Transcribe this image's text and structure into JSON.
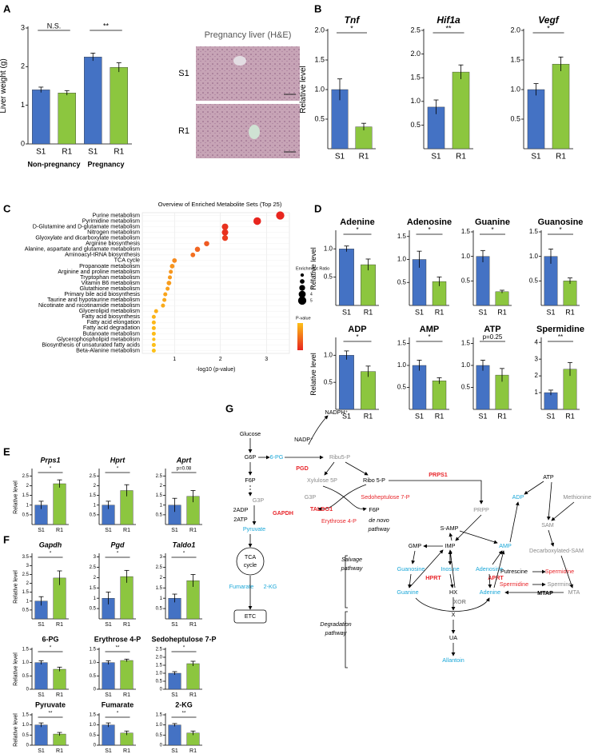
{
  "panel_labels": [
    "A",
    "B",
    "C",
    "D",
    "E",
    "F",
    "G"
  ],
  "image_panel": {
    "title": "Pregnancy liver (H&E)",
    "labels": [
      "S1",
      "R1"
    ]
  },
  "chart_data": [
    {
      "type": "bar",
      "ylabel": "Liver weight (g)",
      "categories": [
        "S1",
        "R1",
        "S1",
        "R1"
      ],
      "groups": [
        "Non-pregnancy",
        "Pregnancy"
      ],
      "values": [
        1.4,
        1.32,
        2.25,
        1.98
      ],
      "errors": [
        0.07,
        0.06,
        0.1,
        0.12
      ],
      "colors": [
        "#4472c4",
        "#8cc63f",
        "#4472c4",
        "#8cc63f"
      ],
      "ylim": [
        0,
        3
      ],
      "yticks": [
        0,
        1,
        2,
        3
      ],
      "annotations": [
        "N.S.",
        "**"
      ]
    },
    {
      "type": "bar",
      "title": "Tnf",
      "ylabel": "Relative level",
      "categories": [
        "S1",
        "R1"
      ],
      "values": [
        1.0,
        0.37
      ],
      "errors": [
        0.18,
        0.06
      ],
      "colors": [
        "#4472c4",
        "#8cc63f"
      ],
      "ylim": [
        0,
        2
      ],
      "yticks": [
        0.5,
        {
          "value": 1,
          "label": "1.0"
        },
        1.5,
        {
          "value": 2,
          "label": "2.0"
        }
      ],
      "annotation": "*"
    },
    {
      "type": "bar",
      "title": "Hif1a",
      "categories": [
        "S1",
        "R1"
      ],
      "values": [
        0.88,
        1.62
      ],
      "errors": [
        0.15,
        0.15
      ],
      "colors": [
        "#4472c4",
        "#8cc63f"
      ],
      "ylim": [
        0,
        2.5
      ],
      "yticks": [
        0.5,
        {
          "value": 1,
          "label": "1.0"
        },
        1.5,
        {
          "value": 2,
          "label": "2.0"
        },
        2.5
      ],
      "annotation": "**"
    },
    {
      "type": "bar",
      "title": "Vegf",
      "categories": [
        "S1",
        "R1"
      ],
      "values": [
        1.0,
        1.43
      ],
      "errors": [
        0.1,
        0.12
      ],
      "colors": [
        "#4472c4",
        "#8cc63f"
      ],
      "ylim": [
        0,
        2
      ],
      "yticks": [
        0.5,
        {
          "value": 1,
          "label": "1.0"
        },
        1.5,
        {
          "value": 2,
          "label": "2.0"
        }
      ],
      "annotation": "*"
    },
    {
      "type": "dot",
      "title": "Overview of Enriched Metabolite Sets (Top 25)",
      "xlabel": "-log10 (p-value)",
      "xlim": [
        0.3,
        3.5
      ],
      "xticks": [
        1,
        2,
        3
      ],
      "categories": [
        "Purine metabolism",
        "Pyrimidine metabolism",
        "D-Glutamine and D-glutamate metabolism",
        "Nitrogen metabolism",
        "Glyoxylate and dicarboxylate metabolism",
        "Arginine biosynthesis",
        "Alanine, aspartate and glutamate metabolism",
        "Aminoacyl-tRNA biosynthesis",
        "TCA cycle",
        "Propanoate metabolism",
        "Arginine and proline metabolism",
        "Tryptophan metabolism",
        "Vitamin B6 metabolism",
        "Glutathione metabolism",
        "Primary bile acid biosynthesis",
        "Taurine and hypotaurine metabolism",
        "Nicotinate and nicotinamide metabolism",
        "Glycerolipid metabolism",
        "Fatty acid biosynthesis",
        "Fatty acid elongation",
        "Fatty acid degradation",
        "Butanoate metabolism",
        "Glycerophospholipid metabolism",
        "Biosynthesis of unsaturated fatty acids",
        "Beta-Alanine metabolism"
      ],
      "values": [
        3.3,
        2.8,
        2.1,
        2.1,
        2.1,
        1.7,
        1.5,
        1.4,
        1.0,
        0.95,
        0.92,
        0.9,
        0.88,
        0.85,
        0.8,
        0.78,
        0.75,
        0.6,
        0.55,
        0.55,
        0.55,
        0.55,
        0.55,
        0.55,
        0.55
      ],
      "sizes": [
        5,
        4.5,
        3.5,
        3.5,
        3,
        2.5,
        2.5,
        2,
        2,
        2,
        1.5,
        1.5,
        2,
        1.5,
        1.5,
        1.5,
        1.5,
        1.5,
        1.5,
        1.5,
        1.5,
        1.5,
        1,
        1.5,
        1.5
      ],
      "colors": [
        "#e8251e",
        "#e8251e",
        "#e8311e",
        "#e8311e",
        "#eb3d20",
        "#ef5a22",
        "#f16522",
        "#f37021",
        "#f68b1f",
        "#f7941d",
        "#f7961d",
        "#f89a1c",
        "#f89c1c",
        "#f9a01b",
        "#f9a41b",
        "#faa81a",
        "#faab1a",
        "#fbb019",
        "#fbb419",
        "#fcb719",
        "#fcb918",
        "#fcbb18",
        "#fdbd18",
        "#fdbf18",
        "#fdc118"
      ],
      "legend": {
        "size_title": "Enrichment Ratio",
        "size_values": [
          1,
          2,
          3,
          4,
          5
        ],
        "color_title": "P-value"
      }
    },
    {
      "type": "bar",
      "title": "Adenine",
      "ylabel": "Relative level",
      "categories": [
        "S1",
        "R1"
      ],
      "values": [
        1.0,
        0.72
      ],
      "errors": [
        0.05,
        0.1
      ],
      "colors": [
        "#4472c4",
        "#8cc63f"
      ],
      "ylim": [
        0,
        1.3
      ],
      "yticks": [
        0.5,
        {
          "value": 1,
          "label": "1.0"
        }
      ],
      "annotation": "*"
    },
    {
      "type": "bar",
      "title": "Adenosine",
      "categories": [
        "S1",
        "R1"
      ],
      "values": [
        1.0,
        0.52
      ],
      "errors": [
        0.18,
        0.1
      ],
      "colors": [
        "#4472c4",
        "#8cc63f"
      ],
      "ylim": [
        0,
        1.6
      ],
      "yticks": [
        0.5,
        {
          "value": 1,
          "label": "1.0"
        },
        1.5
      ],
      "annotation": "*"
    },
    {
      "type": "bar",
      "title": "Guanine",
      "categories": [
        "S1",
        "R1"
      ],
      "values": [
        1.0,
        0.28
      ],
      "errors": [
        0.12,
        0.03
      ],
      "colors": [
        "#4472c4",
        "#8cc63f"
      ],
      "ylim": [
        0,
        1.5
      ],
      "yticks": [
        0.5,
        {
          "value": 1,
          "label": "1.0"
        },
        1.5
      ],
      "annotation": "*"
    },
    {
      "type": "bar",
      "title": "Guanosine",
      "categories": [
        "S1",
        "R1"
      ],
      "values": [
        1.0,
        0.5
      ],
      "errors": [
        0.15,
        0.06
      ],
      "colors": [
        "#4472c4",
        "#8cc63f"
      ],
      "ylim": [
        0,
        1.5
      ],
      "yticks": [
        0.5,
        {
          "value": 1,
          "label": "1.0"
        },
        1.5
      ],
      "annotation": "*"
    },
    {
      "type": "bar",
      "title": "ADP",
      "ylabel": "Relative level",
      "categories": [
        "S1",
        "R1"
      ],
      "values": [
        1.0,
        0.7
      ],
      "errors": [
        0.08,
        0.1
      ],
      "colors": [
        "#4472c4",
        "#8cc63f"
      ],
      "ylim": [
        0,
        1.3
      ],
      "yticks": [
        0.5,
        {
          "value": 1,
          "label": "1.0"
        }
      ],
      "annotation": "*"
    },
    {
      "type": "bar",
      "title": "AMP",
      "categories": [
        "S1",
        "R1"
      ],
      "values": [
        1.0,
        0.65
      ],
      "errors": [
        0.12,
        0.07
      ],
      "colors": [
        "#4472c4",
        "#8cc63f"
      ],
      "ylim": [
        0,
        1.6
      ],
      "yticks": [
        0.5,
        {
          "value": 1,
          "label": "1.0"
        },
        1.5
      ],
      "annotation": "*"
    },
    {
      "type": "bar",
      "title": "ATP",
      "categories": [
        "S1",
        "R1"
      ],
      "values": [
        1.0,
        0.78
      ],
      "errors": [
        0.12,
        0.15
      ],
      "colors": [
        "#4472c4",
        "#8cc63f"
      ],
      "ylim": [
        0,
        1.6
      ],
      "yticks": [
        0.5,
        {
          "value": 1,
          "label": "1.0"
        },
        1.5
      ],
      "annotation": "p=0.25"
    },
    {
      "type": "bar",
      "title": "Spermidine",
      "categories": [
        "S1",
        "R1"
      ],
      "values": [
        1.0,
        2.4
      ],
      "errors": [
        0.15,
        0.4
      ],
      "colors": [
        "#4472c4",
        "#8cc63f"
      ],
      "ylim": [
        0,
        4.2
      ],
      "yticks": [
        1,
        2,
        3,
        4
      ],
      "annotation": "**"
    },
    {
      "type": "bar",
      "title": "Prps1",
      "ylabel": "Relative level",
      "categories": [
        "S1",
        "R1"
      ],
      "values": [
        1.0,
        2.1
      ],
      "errors": [
        0.2,
        0.2
      ],
      "colors": [
        "#4472c4",
        "#8cc63f"
      ],
      "ylim": [
        0,
        2.8
      ],
      "yticks": [
        0.5,
        1,
        1.5,
        2,
        2.5
      ],
      "annotation": "*"
    },
    {
      "type": "bar",
      "title": "Hprt",
      "categories": [
        "S1",
        "R1"
      ],
      "values": [
        1.0,
        1.75
      ],
      "errors": [
        0.2,
        0.3
      ],
      "colors": [
        "#4472c4",
        "#8cc63f"
      ],
      "ylim": [
        0,
        2.8
      ],
      "yticks": [
        0.5,
        1,
        1.5,
        2,
        2.5
      ],
      "annotation": "*"
    },
    {
      "type": "bar",
      "title": "Aprt",
      "categories": [
        "S1",
        "R1"
      ],
      "values": [
        1.0,
        1.45
      ],
      "errors": [
        0.35,
        0.3
      ],
      "colors": [
        "#4472c4",
        "#8cc63f"
      ],
      "ylim": [
        0,
        2.8
      ],
      "yticks": [
        0.5,
        1,
        1.5,
        2,
        2.5
      ],
      "annotation": "p=0.08"
    },
    {
      "type": "bar",
      "title": "Gapdh",
      "ylabel": "Relative level",
      "categories": [
        "S1",
        "R1"
      ],
      "values": [
        1.0,
        2.3
      ],
      "errors": [
        0.25,
        0.4
      ],
      "colors": [
        "#4472c4",
        "#8cc63f"
      ],
      "ylim": [
        0,
        3.6
      ],
      "yticks": [
        0.5,
        1,
        1.5,
        2,
        2.5,
        3,
        3.5
      ],
      "annotation": "*"
    },
    {
      "type": "bar",
      "title": "Pgd",
      "categories": [
        "S1",
        "R1"
      ],
      "values": [
        1.0,
        2.05
      ],
      "errors": [
        0.3,
        0.3
      ],
      "colors": [
        "#4472c4",
        "#8cc63f"
      ],
      "ylim": [
        0,
        3.1
      ],
      "yticks": [
        0.5,
        1,
        1.5,
        2,
        2.5,
        3
      ],
      "annotation": "*"
    },
    {
      "type": "bar",
      "title": "Taldo1",
      "categories": [
        "S1",
        "R1"
      ],
      "values": [
        1.0,
        1.85
      ],
      "errors": [
        0.2,
        0.3
      ],
      "colors": [
        "#4472c4",
        "#8cc63f"
      ],
      "ylim": [
        0,
        3.1
      ],
      "yticks": [
        0.5,
        1,
        1.5,
        2,
        2.5,
        3
      ],
      "annotation": "*"
    },
    {
      "type": "bar",
      "title": "6-PG",
      "ylabel": "Relative level",
      "categories": [
        "S1",
        "R1"
      ],
      "values": [
        1.0,
        0.75
      ],
      "errors": [
        0.07,
        0.08
      ],
      "colors": [
        "#4472c4",
        "#8cc63f"
      ],
      "ylim": [
        0,
        1.5
      ],
      "yticks": [
        0,
        0.5,
        {
          "value": 1,
          "label": "1.0"
        },
        1.5
      ],
      "annotation": "*"
    },
    {
      "type": "bar",
      "title": "Erythrose 4-P",
      "categories": [
        "S1",
        "R1"
      ],
      "values": [
        1.0,
        1.08
      ],
      "errors": [
        0.07,
        0.05
      ],
      "colors": [
        "#4472c4",
        "#8cc63f"
      ],
      "ylim": [
        0,
        1.5
      ],
      "yticks": [
        0,
        0.5,
        {
          "value": 1,
          "label": "1.0"
        },
        1.5
      ],
      "annotation": "**"
    },
    {
      "type": "bar",
      "title": "Sedoheptulose 7-P",
      "categories": [
        "S1",
        "R1"
      ],
      "values": [
        1.0,
        1.6
      ],
      "errors": [
        0.1,
        0.15
      ],
      "colors": [
        "#4472c4",
        "#8cc63f"
      ],
      "ylim": [
        0,
        2.5
      ],
      "yticks": [
        0,
        0.5,
        {
          "value": 1,
          "label": "1.0"
        },
        1.5,
        {
          "value": 2,
          "label": "2.0"
        },
        2.5
      ],
      "annotation": "*"
    },
    {
      "type": "bar",
      "title": "Pyruvate",
      "ylabel": "Relative level",
      "categories": [
        "S1",
        "R1"
      ],
      "values": [
        1.0,
        0.55
      ],
      "errors": [
        0.1,
        0.08
      ],
      "colors": [
        "#4472c4",
        "#8cc63f"
      ],
      "ylim": [
        0,
        1.5
      ],
      "yticks": [
        0,
        0.5,
        {
          "value": 1,
          "label": "1.0"
        },
        1.5
      ],
      "annotation": "**"
    },
    {
      "type": "bar",
      "title": "Fumarate",
      "categories": [
        "S1",
        "R1"
      ],
      "values": [
        1.0,
        0.6
      ],
      "errors": [
        0.1,
        0.1
      ],
      "colors": [
        "#4472c4",
        "#8cc63f"
      ],
      "ylim": [
        0,
        1.5
      ],
      "yticks": [
        0,
        0.5,
        {
          "value": 1,
          "label": "1.0"
        },
        1.5
      ],
      "annotation": "*"
    },
    {
      "type": "bar",
      "title": "2-KG",
      "categories": [
        "S1",
        "R1"
      ],
      "values": [
        1.0,
        0.6
      ],
      "errors": [
        0.07,
        0.1
      ],
      "colors": [
        "#4472c4",
        "#8cc63f"
      ],
      "ylim": [
        0,
        1.5
      ],
      "yticks": [
        0,
        0.5,
        {
          "value": 1,
          "label": "1.0"
        },
        1.5
      ],
      "annotation": "**"
    }
  ],
  "pathway": {
    "labels": [
      {
        "text": "Glucose",
        "color": "#000000"
      },
      {
        "text": "NADPH⁺",
        "color": "#000000"
      },
      {
        "text": "NADP⁺",
        "color": "#000000"
      },
      {
        "text": "G6P",
        "color": "#000000"
      },
      {
        "text": "6-PG",
        "color": "#1aa7d8"
      },
      {
        "text": "PGD",
        "color": "#e8252a",
        "bold": true
      },
      {
        "text": "Ribu5-P",
        "color": "#8a8a8a"
      },
      {
        "text": "F6P",
        "color": "#000000"
      },
      {
        "text": "Xylulose 5P",
        "color": "#8a8a8a"
      },
      {
        "text": "Ribo 5-P",
        "color": "#000000"
      },
      {
        "text": "PRPS1",
        "color": "#e8252a",
        "bold": true
      },
      {
        "text": "G3P",
        "color": "#8a8a8a"
      },
      {
        "text": "Sedoheptulose 7-P",
        "color": "#e8252a"
      },
      {
        "text": "G3P",
        "color": "#8a8a8a"
      },
      {
        "text": "TALDO1",
        "color": "#e8252a",
        "bold": true
      },
      {
        "text": "F6P",
        "color": "#000000"
      },
      {
        "text": "2ADP",
        "color": "#000000"
      },
      {
        "text": "2ATP",
        "color": "#000000"
      },
      {
        "text": "GAPDH",
        "color": "#e8252a",
        "bold": true
      },
      {
        "text": "Erythrose 4-P",
        "color": "#e8252a"
      },
      {
        "text": "de novo",
        "color": "#000000",
        "italic": true
      },
      {
        "text": "pathway",
        "color": "#000000",
        "italic": true
      },
      {
        "text": "Pyruvate",
        "color": "#1aa7d8"
      },
      {
        "text": "TCA",
        "color": "#000000"
      },
      {
        "text": "cycle",
        "color": "#000000"
      },
      {
        "text": "Fumarate",
        "color": "#1aa7d8"
      },
      {
        "text": "2-KG",
        "color": "#1aa7d8"
      },
      {
        "text": "ETC",
        "color": "#000000"
      },
      {
        "text": "PRPP",
        "color": "#8a8a8a"
      },
      {
        "text": "ATP",
        "color": "#000000"
      },
      {
        "text": "Methionine",
        "color": "#8a8a8a"
      },
      {
        "text": "ADP",
        "color": "#1aa7d8"
      },
      {
        "text": "SAM",
        "color": "#8a8a8a"
      },
      {
        "text": "S-AMP",
        "color": "#000000"
      },
      {
        "text": "Decarboxylated-SAM",
        "color": "#8a8a8a"
      },
      {
        "text": "GMP",
        "color": "#000000"
      },
      {
        "text": "IMP",
        "color": "#000000"
      },
      {
        "text": "AMP",
        "color": "#1aa7d8"
      },
      {
        "text": "Salvage",
        "color": "#000000",
        "italic": true
      },
      {
        "text": "pathway",
        "color": "#000000",
        "italic": true
      },
      {
        "text": "Guanosine",
        "color": "#1aa7d8"
      },
      {
        "text": "Inosine",
        "color": "#1aa7d8"
      },
      {
        "text": "Adenosine",
        "color": "#1aa7d8"
      },
      {
        "text": "Putrescine",
        "color": "#000000"
      },
      {
        "text": "Spermidine",
        "color": "#e8252a"
      },
      {
        "text": "Spermidine",
        "color": "#e8252a"
      },
      {
        "text": "Spermine",
        "color": "#8a8a8a"
      },
      {
        "text": "HPRT",
        "color": "#e8252a",
        "bold": true
      },
      {
        "text": "APRT",
        "color": "#e8252a",
        "bold": true
      },
      {
        "text": "Guanine",
        "color": "#1aa7d8"
      },
      {
        "text": "HX",
        "color": "#000000"
      },
      {
        "text": "Adenine",
        "color": "#1aa7d8"
      },
      {
        "text": "MTAP",
        "color": "#000000",
        "bold": true
      },
      {
        "text": "MTA",
        "color": "#8a8a8a"
      },
      {
        "text": "XOR",
        "color": "#8a8a8a",
        "bold": true
      },
      {
        "text": "Degradation",
        "color": "#000000",
        "italic": true
      },
      {
        "text": "pathway",
        "color": "#000000",
        "italic": true
      },
      {
        "text": "X",
        "color": "#000000"
      },
      {
        "text": "UA",
        "color": "#000000"
      },
      {
        "text": "Allantoin",
        "color": "#1aa7d8"
      }
    ]
  }
}
